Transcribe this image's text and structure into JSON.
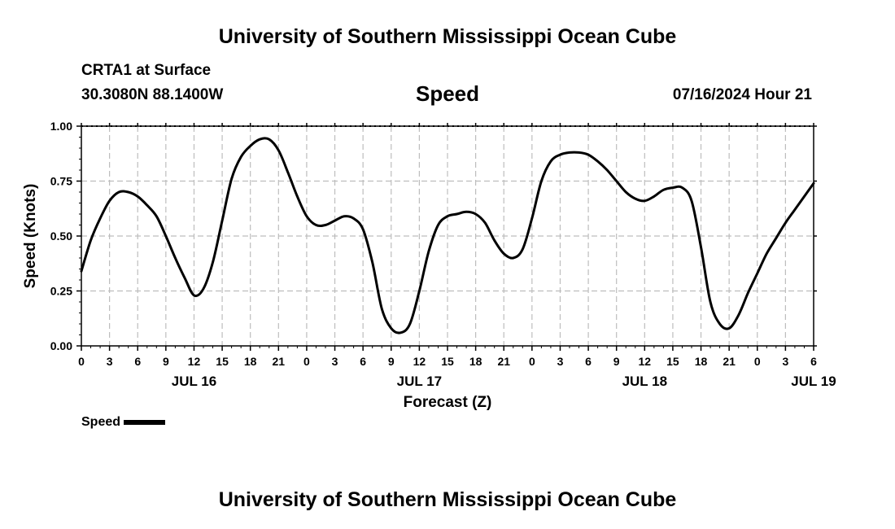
{
  "header": {
    "title": "University of Southern Mississippi Ocean Cube",
    "station": "CRTA1 at Surface",
    "coordinates": "30.3080N  88.1400W",
    "variable": "Speed",
    "datetime": "07/16/2024 Hour 21"
  },
  "footer": {
    "title": "University of Southern Mississippi Ocean Cube"
  },
  "chart_data": {
    "type": "line",
    "title": "Speed",
    "xlabel": "Forecast (Z)",
    "ylabel": "Speed (Knots)",
    "xlim": [
      0,
      78
    ],
    "ylim": [
      0,
      1
    ],
    "grid": true,
    "x_tick_labels": [
      "0",
      "3",
      "6",
      "9",
      "12",
      "15",
      "18",
      "21",
      "0",
      "3",
      "6",
      "9",
      "12",
      "15",
      "18",
      "21",
      "0",
      "3",
      "6",
      "9",
      "12",
      "15",
      "18",
      "21",
      "0",
      "3",
      "6"
    ],
    "date_labels": [
      {
        "hour": 12,
        "label": "JUL 16"
      },
      {
        "hour": 36,
        "label": "JUL 17"
      },
      {
        "hour": 60,
        "label": "JUL 18"
      },
      {
        "hour": 78,
        "label": "JUL 19"
      }
    ],
    "y_ticks": [
      0.0,
      0.25,
      0.5,
      0.75,
      1.0
    ],
    "y_tick_labels": [
      "0.00",
      "0.25",
      "0.50",
      "0.75",
      "1.00"
    ],
    "legend": {
      "label": "Speed",
      "placement": "bottom-left"
    },
    "series": [
      {
        "name": "Speed",
        "x": [
          0,
          1,
          2,
          3,
          4,
          5,
          6,
          7,
          8,
          9,
          10,
          11,
          12,
          13,
          14,
          15,
          16,
          17,
          18,
          19,
          20,
          21,
          22,
          23,
          24,
          25,
          26,
          27,
          28,
          29,
          30,
          31,
          32,
          33,
          34,
          35,
          36,
          37,
          38,
          39,
          40,
          41,
          42,
          43,
          44,
          45,
          46,
          47,
          48,
          49,
          50,
          51,
          52,
          53,
          54,
          55,
          56,
          57,
          58,
          59,
          60,
          61,
          62,
          63,
          64,
          65,
          66,
          67,
          68,
          69,
          70,
          71,
          72,
          73,
          74,
          75,
          76,
          77,
          78
        ],
        "values": [
          0.34,
          0.48,
          0.58,
          0.66,
          0.7,
          0.7,
          0.68,
          0.64,
          0.59,
          0.5,
          0.4,
          0.31,
          0.23,
          0.26,
          0.38,
          0.57,
          0.76,
          0.86,
          0.91,
          0.94,
          0.94,
          0.89,
          0.79,
          0.68,
          0.59,
          0.55,
          0.55,
          0.57,
          0.59,
          0.58,
          0.53,
          0.38,
          0.17,
          0.08,
          0.06,
          0.1,
          0.25,
          0.43,
          0.55,
          0.59,
          0.6,
          0.61,
          0.6,
          0.56,
          0.48,
          0.42,
          0.4,
          0.44,
          0.58,
          0.75,
          0.84,
          0.87,
          0.88,
          0.88,
          0.87,
          0.84,
          0.8,
          0.75,
          0.7,
          0.67,
          0.66,
          0.68,
          0.71,
          0.72,
          0.72,
          0.66,
          0.45,
          0.2,
          0.1,
          0.08,
          0.14,
          0.24,
          0.33,
          0.42,
          0.49,
          0.56,
          0.62,
          0.68,
          0.74
        ]
      }
    ]
  }
}
